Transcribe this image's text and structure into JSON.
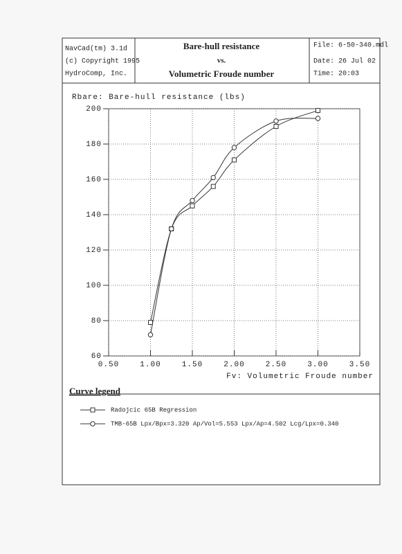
{
  "header": {
    "left": [
      "NavCad(tm) 3.1d",
      "(c) Copyright 1995",
      "HydroComp, Inc."
    ],
    "title": [
      "Bare-hull resistance",
      "vs.",
      "Volumetric Froude number"
    ],
    "right": [
      "File: 6-50-340.mdl",
      "Date: 26 Jul 02",
      "Time: 20:03"
    ]
  },
  "chart_data": {
    "type": "line",
    "y_label": "Rbare: Bare-hull resistance (lbs)",
    "x_label": "Fv: Volumetric Froude number",
    "legend_title": "Curve legend",
    "x": [
      1.0,
      1.25,
      1.5,
      1.75,
      2.0,
      2.5,
      3.0
    ],
    "series": [
      {
        "name": "Radojcic 65B Regression",
        "marker": "square",
        "color": "#333333",
        "values": [
          79,
          132,
          145,
          156,
          171,
          190,
          199
        ]
      },
      {
        "name": "TMB-65B Lpx/Bpx=3.320 Ap/Vol=5.553 Lpx/Ap=4.502 Lcg/Lpx=0.340",
        "marker": "circle",
        "color": "#333333",
        "values": [
          72,
          132,
          148,
          161,
          178,
          193,
          194.5
        ]
      }
    ],
    "xlim": [
      0.5,
      3.5
    ],
    "xticks": [
      {
        "value": 0.5,
        "label": "0.50"
      },
      {
        "value": 1.0,
        "label": "1.00"
      },
      {
        "value": 1.5,
        "label": "1.50"
      },
      {
        "value": 2.0,
        "label": "2.00"
      },
      {
        "value": 2.5,
        "label": "2.50"
      },
      {
        "value": 3.0,
        "label": "3.00"
      },
      {
        "value": 3.5,
        "label": "3.50"
      }
    ],
    "ylim": [
      60,
      200
    ],
    "yticks": [
      60,
      80,
      100,
      120,
      140,
      160,
      180,
      200
    ],
    "grid": true
  }
}
